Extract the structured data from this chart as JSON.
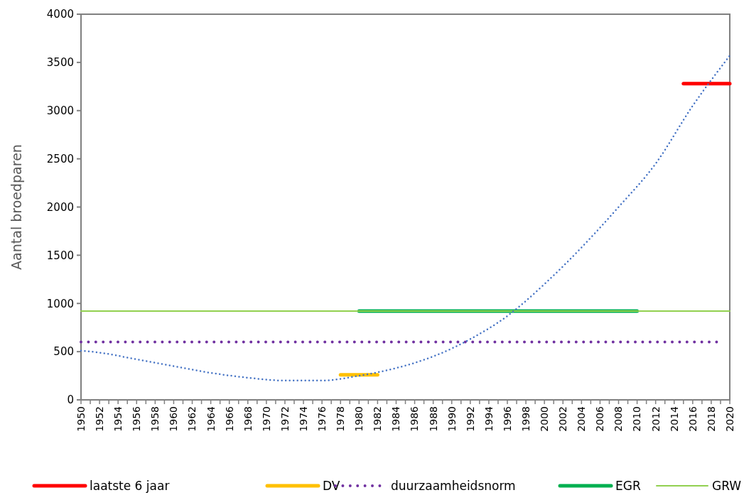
{
  "chart_data": {
    "type": "line",
    "ylabel": "Aantal broedparen",
    "xlim": [
      1950,
      2020
    ],
    "ylim": [
      0,
      4000
    ],
    "yticks": [
      0,
      500,
      1000,
      1500,
      2000,
      2500,
      3000,
      3500,
      4000
    ],
    "xticks": [
      1950,
      {
        "value": 1951,
        "label": null
      },
      1952,
      {
        "value": 1953,
        "label": null
      },
      1954,
      {
        "value": 1955,
        "label": null
      },
      1956,
      {
        "value": 1957,
        "label": null
      },
      1958,
      {
        "value": 1959,
        "label": null
      },
      1960,
      {
        "value": 1961,
        "label": null
      },
      1962,
      {
        "value": 1963,
        "label": null
      },
      1964,
      {
        "value": 1965,
        "label": null
      },
      1966,
      {
        "value": 1967,
        "label": null
      },
      1968,
      {
        "value": 1969,
        "label": null
      },
      1970,
      {
        "value": 1971,
        "label": null
      },
      1972,
      {
        "value": 1973,
        "label": null
      },
      1974,
      {
        "value": 1975,
        "label": null
      },
      1976,
      {
        "value": 1977,
        "label": null
      },
      1978,
      {
        "value": 1979,
        "label": null
      },
      1980,
      {
        "value": 1981,
        "label": null
      },
      1982,
      {
        "value": 1983,
        "label": null
      },
      1984,
      {
        "value": 1985,
        "label": null
      },
      1986,
      {
        "value": 1987,
        "label": null
      },
      1988,
      {
        "value": 1989,
        "label": null
      },
      1990,
      {
        "value": 1991,
        "label": null
      },
      1992,
      {
        "value": 1993,
        "label": null
      },
      1994,
      {
        "value": 1995,
        "label": null
      },
      1996,
      {
        "value": 1997,
        "label": null
      },
      1998,
      {
        "value": 1999,
        "label": null
      },
      2000,
      {
        "value": 2001,
        "label": null
      },
      2002,
      {
        "value": 2003,
        "label": null
      },
      2004,
      {
        "value": 2005,
        "label": null
      },
      2006,
      {
        "value": 2007,
        "label": null
      },
      2008,
      {
        "value": 2009,
        "label": null
      },
      2010,
      {
        "value": 2011,
        "label": null
      },
      2012,
      {
        "value": 2013,
        "label": null
      },
      2014,
      {
        "value": 2015,
        "label": null
      },
      2016,
      {
        "value": 2017,
        "label": null
      },
      2018,
      {
        "value": 2019,
        "label": null
      },
      2020
    ],
    "grid": false,
    "legend": "bottom",
    "series": [
      {
        "name": "laatste 6 jaar",
        "color": "#ff0000",
        "x": [
          2015,
          2020
        ],
        "values": [
          3280,
          3280
        ]
      },
      {
        "name": "DV",
        "color": "#ffc000",
        "x": [
          1978,
          1982
        ],
        "values": [
          260,
          260
        ]
      },
      {
        "name": "duurzaamheidsnorm",
        "color": "#7030a0",
        "line_style": "dotted",
        "x": [
          1950,
          2019
        ],
        "values": [
          600,
          600
        ]
      },
      {
        "name": "EGR",
        "color": "#00b050",
        "x": [
          1980,
          2010
        ],
        "values": [
          920,
          920
        ]
      },
      {
        "name": "GRW",
        "color": "#92d050",
        "x": [
          1950,
          2020
        ],
        "values": [
          920,
          920
        ]
      },
      {
        "color": "#4472c4",
        "line_style": "dotted",
        "x": [
          1950,
          1952,
          1956,
          1960,
          1964,
          1968,
          1972,
          1976,
          1980,
          1984,
          1988,
          1992,
          1996,
          2000,
          2004,
          2008,
          2012,
          2016,
          2020
        ],
        "values": [
          510,
          490,
          420,
          350,
          280,
          230,
          200,
          200,
          250,
          330,
          450,
          630,
          870,
          1200,
          1580,
          2000,
          2450,
          3050,
          3570
        ]
      }
    ]
  }
}
